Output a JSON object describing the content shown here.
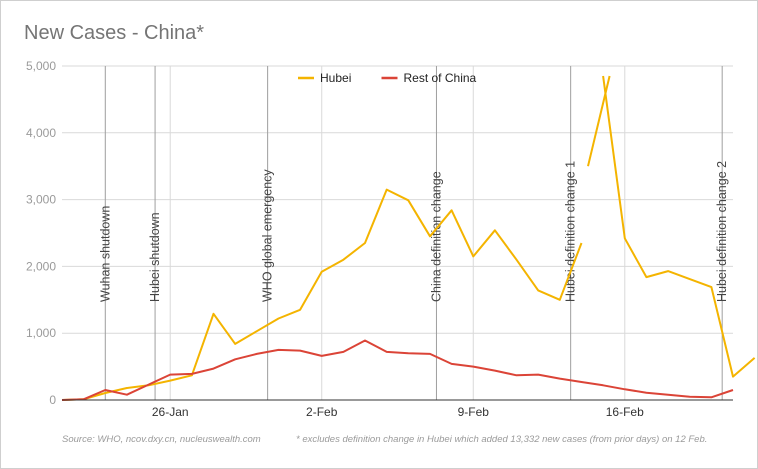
{
  "chart_data": {
    "type": "line",
    "title": "New Cases - China*",
    "x": [
      "21-Jan",
      "22-Jan",
      "23-Jan",
      "24-Jan",
      "25-Jan",
      "26-Jan",
      "27-Jan",
      "28-Jan",
      "29-Jan",
      "30-Jan",
      "31-Jan",
      "1-Feb",
      "2-Feb",
      "3-Feb",
      "4-Feb",
      "5-Feb",
      "6-Feb",
      "7-Feb",
      "8-Feb",
      "9-Feb",
      "10-Feb",
      "11-Feb",
      "12-Feb",
      "13-Feb",
      "14-Feb",
      "15-Feb",
      "16-Feb",
      "17-Feb",
      "18-Feb",
      "19-Feb",
      "20-Feb",
      "21-Feb"
    ],
    "xticks": [
      {
        "label": "26-Jan",
        "index": 5
      },
      {
        "label": "2-Feb",
        "index": 12
      },
      {
        "label": "9-Feb",
        "index": 19
      },
      {
        "label": "16-Feb",
        "index": 26
      }
    ],
    "ylim": [
      0,
      5000
    ],
    "yticks": [
      "0",
      "1,000",
      "2,000",
      "3,000",
      "4,000",
      "5,000"
    ],
    "ytick_values": [
      0,
      1000,
      2000,
      3000,
      4000,
      5000
    ],
    "series": [
      {
        "name": "Hubei",
        "color": "#f4b400",
        "segments": [
          {
            "start": 0,
            "values": [
              0,
              10,
              105,
              180,
              220,
              290,
              370,
              1290,
              840,
              1030,
              1220,
              1350,
              1920,
              2100,
              2350,
              3150,
              2990,
              2450,
              2840,
              2150,
              2540,
              2100,
              1640,
              1500,
              2350
            ]
          },
          {
            "start": 24.3,
            "values": [
              3500,
              4850
            ]
          },
          {
            "start": 25,
            "values": [
              4850,
              2420,
              1840,
              1930,
              1810,
              1690,
              350,
              630
            ]
          }
        ]
      },
      {
        "name": "Rest of China",
        "color": "#db4437",
        "segments": [
          {
            "start": 0,
            "values": [
              0,
              10,
              150,
              80,
              230,
              380,
              390,
              470,
              610,
              690,
              750,
              740,
              660,
              720,
              890,
              720,
              700,
              690,
              540,
              500,
              440,
              370,
              380,
              320,
              270,
              220,
              160,
              110,
              80,
              50,
              40,
              150
            ]
          }
        ]
      }
    ],
    "events": [
      {
        "label": "Wuhan shutdown",
        "index": 2
      },
      {
        "label": "Hubei shutdown",
        "index": 4.3
      },
      {
        "label": "WHO global emergency",
        "index": 9.5
      },
      {
        "label": "China definition change",
        "index": 17.3
      },
      {
        "label": "Hubei definition change 1",
        "index": 23.5
      },
      {
        "label": "Hubei definition change 2",
        "index": 30.5
      }
    ],
    "legend": "top-center",
    "grid": true
  },
  "footer": {
    "source": "Source: WHO, ncov.dxy.cn, nucleuswealth.com",
    "note": "* excludes definition change in Hubei which added 13,332 new cases (from prior days) on 12 Feb."
  }
}
